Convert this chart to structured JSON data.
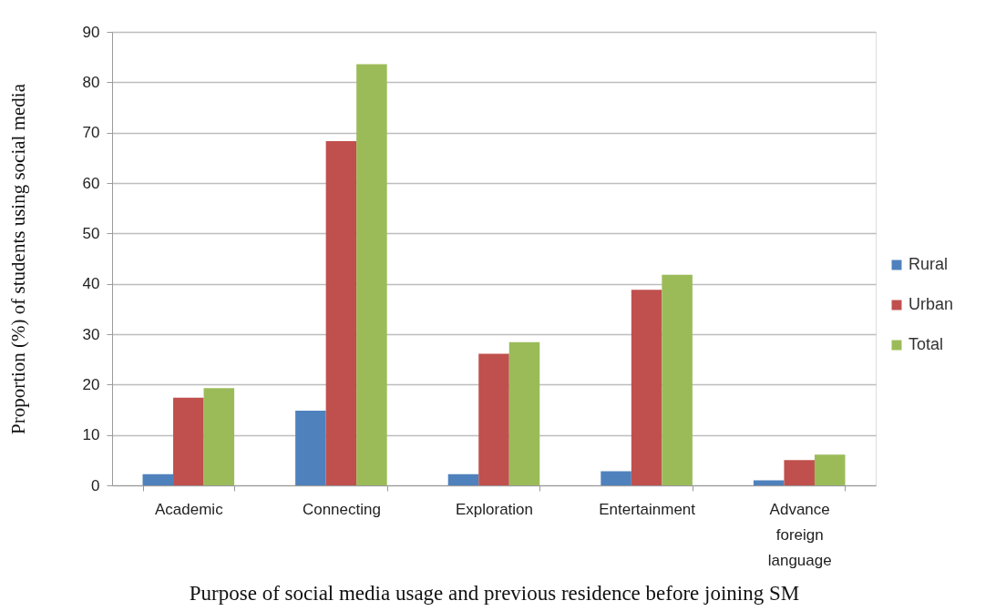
{
  "chart_data": {
    "type": "bar",
    "xlabel": "Purpose of social media usage and previous residence before joining SM",
    "ylabel": "Proportion (%) of students using social media",
    "categories": [
      "Academic",
      "Connecting",
      "Exploration",
      "Entertainment",
      "Advance foreign language"
    ],
    "series": [
      {
        "name": "Rural",
        "color": "#4f81bd",
        "values": [
          2.2,
          14.8,
          2.2,
          2.8,
          1.0
        ]
      },
      {
        "name": "Urban",
        "color": "#c0504d",
        "values": [
          17.4,
          68.3,
          26.1,
          38.8,
          5.0
        ]
      },
      {
        "name": "Total",
        "color": "#9bbb59",
        "values": [
          19.3,
          83.6,
          28.4,
          41.8,
          6.1
        ]
      }
    ],
    "ylim": [
      0,
      90
    ],
    "yticks": [
      0,
      10,
      20,
      30,
      40,
      50,
      60,
      70,
      80,
      90
    ],
    "grid": "y",
    "legend": "right"
  }
}
